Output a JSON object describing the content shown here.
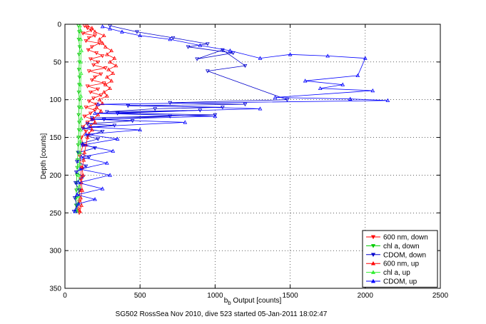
{
  "caption": "SG502 RossSea Nov 2010, dive 523 started 05-Jan-2011 18:02:47",
  "chart_data": {
    "type": "line",
    "xlabel": "b",
    "xlabel_sub": "b",
    "xlabel_rest": " Output [counts]",
    "ylabel": "Depth [counts]",
    "xlim": [
      0,
      2500
    ],
    "ylim": [
      0,
      350
    ],
    "y_reversed": true,
    "grid": true,
    "xticks": [
      0,
      500,
      1000,
      1500,
      2000,
      2500
    ],
    "yticks": [
      0,
      50,
      100,
      150,
      200,
      250,
      300,
      350
    ],
    "legend_position": "bottom-right",
    "series": [
      {
        "name": "600 nm, down",
        "color": "#ff0000",
        "marker": "triangle-down",
        "points": [
          [
            130,
            2
          ],
          [
            150,
            5
          ],
          [
            175,
            8
          ],
          [
            120,
            12
          ],
          [
            200,
            15
          ],
          [
            160,
            18
          ],
          [
            140,
            22
          ],
          [
            230,
            25
          ],
          [
            180,
            30
          ],
          [
            155,
            34
          ],
          [
            210,
            38
          ],
          [
            250,
            42
          ],
          [
            170,
            46
          ],
          [
            220,
            50
          ],
          [
            190,
            54
          ],
          [
            270,
            58
          ],
          [
            160,
            62
          ],
          [
            240,
            66
          ],
          [
            200,
            70
          ],
          [
            180,
            74
          ],
          [
            260,
            78
          ],
          [
            150,
            82
          ],
          [
            220,
            86
          ],
          [
            170,
            90
          ],
          [
            240,
            94
          ],
          [
            190,
            98
          ],
          [
            160,
            102
          ],
          [
            210,
            106
          ],
          [
            140,
            110
          ],
          [
            200,
            114
          ],
          [
            170,
            118
          ],
          [
            130,
            122
          ],
          [
            180,
            126
          ],
          [
            150,
            130
          ],
          [
            120,
            136
          ],
          [
            140,
            142
          ],
          [
            110,
            150
          ],
          [
            120,
            160
          ],
          [
            100,
            175
          ],
          [
            110,
            190
          ],
          [
            105,
            205
          ],
          [
            100,
            220
          ],
          [
            95,
            235
          ],
          [
            90,
            245
          ],
          [
            95,
            250
          ]
        ]
      },
      {
        "name": "chl a, down",
        "color": "#00cc00",
        "marker": "triangle-down",
        "points": [
          [
            90,
            2
          ],
          [
            95,
            10
          ],
          [
            92,
            20
          ],
          [
            98,
            30
          ],
          [
            94,
            40
          ],
          [
            96,
            50
          ],
          [
            93,
            60
          ],
          [
            97,
            70
          ],
          [
            95,
            80
          ],
          [
            92,
            90
          ],
          [
            96,
            100
          ],
          [
            94,
            110
          ],
          [
            91,
            120
          ],
          [
            95,
            130
          ],
          [
            93,
            140
          ],
          [
            90,
            150
          ],
          [
            88,
            160
          ],
          [
            86,
            170
          ],
          [
            84,
            180
          ],
          [
            82,
            190
          ],
          [
            80,
            200
          ],
          [
            78,
            210
          ],
          [
            76,
            220
          ],
          [
            75,
            230
          ],
          [
            74,
            240
          ],
          [
            75,
            248
          ]
        ]
      },
      {
        "name": "CDOM, down",
        "color": "#0000cc",
        "marker": "triangle-down",
        "points": [
          [
            300,
            2
          ],
          [
            480,
            10
          ],
          [
            720,
            18
          ],
          [
            950,
            26
          ],
          [
            820,
            30
          ],
          [
            1120,
            38
          ],
          [
            880,
            46
          ],
          [
            1050,
            34
          ],
          [
            1200,
            55
          ],
          [
            950,
            62
          ],
          [
            1480,
            100
          ],
          [
            700,
            104
          ],
          [
            1200,
            106
          ],
          [
            420,
            108
          ],
          [
            1050,
            110
          ],
          [
            600,
            112
          ],
          [
            280,
            116
          ],
          [
            900,
            114
          ],
          [
            350,
            118
          ],
          [
            1000,
            120
          ],
          [
            180,
            124
          ],
          [
            700,
            122
          ],
          [
            260,
            126
          ],
          [
            450,
            128
          ],
          [
            150,
            132
          ],
          [
            330,
            134
          ],
          [
            120,
            138
          ],
          [
            250,
            142
          ],
          [
            150,
            148
          ],
          [
            220,
            152
          ],
          [
            110,
            158
          ],
          [
            200,
            164
          ],
          [
            90,
            170
          ],
          [
            160,
            176
          ],
          [
            80,
            182
          ],
          [
            140,
            188
          ],
          [
            75,
            196
          ],
          [
            120,
            202
          ],
          [
            70,
            210
          ],
          [
            95,
            220
          ],
          [
            65,
            230
          ],
          [
            80,
            240
          ],
          [
            60,
            248
          ]
        ]
      },
      {
        "name": "600 nm, up",
        "color": "#ff0000",
        "marker": "triangle-up",
        "points": [
          [
            100,
            248
          ],
          [
            110,
            240
          ],
          [
            105,
            230
          ],
          [
            115,
            220
          ],
          [
            110,
            210
          ],
          [
            120,
            200
          ],
          [
            115,
            190
          ],
          [
            125,
            180
          ],
          [
            130,
            170
          ],
          [
            140,
            160
          ],
          [
            150,
            150
          ],
          [
            160,
            145
          ],
          [
            180,
            140
          ],
          [
            170,
            135
          ],
          [
            200,
            130
          ],
          [
            190,
            125
          ],
          [
            220,
            120
          ],
          [
            240,
            115
          ],
          [
            210,
            110
          ],
          [
            250,
            105
          ],
          [
            230,
            100
          ],
          [
            280,
            95
          ],
          [
            260,
            90
          ],
          [
            300,
            85
          ],
          [
            270,
            80
          ],
          [
            310,
            75
          ],
          [
            280,
            70
          ],
          [
            320,
            65
          ],
          [
            290,
            60
          ],
          [
            340,
            55
          ],
          [
            300,
            50
          ],
          [
            330,
            45
          ],
          [
            280,
            40
          ],
          [
            310,
            35
          ],
          [
            270,
            30
          ],
          [
            250,
            25
          ],
          [
            230,
            20
          ],
          [
            260,
            15
          ],
          [
            200,
            10
          ],
          [
            180,
            5
          ],
          [
            150,
            2
          ]
        ]
      },
      {
        "name": "chl a, up",
        "color": "#33ee33",
        "marker": "triangle-up",
        "points": [
          [
            80,
            248
          ],
          [
            85,
            238
          ],
          [
            90,
            228
          ],
          [
            95,
            215
          ],
          [
            92,
            200
          ],
          [
            98,
            185
          ],
          [
            100,
            170
          ],
          [
            102,
            155
          ],
          [
            105,
            140
          ],
          [
            108,
            125
          ],
          [
            110,
            110
          ],
          [
            106,
            95
          ],
          [
            104,
            80
          ],
          [
            108,
            65
          ],
          [
            105,
            50
          ],
          [
            110,
            35
          ],
          [
            106,
            20
          ],
          [
            104,
            8
          ],
          [
            100,
            2
          ]
        ]
      },
      {
        "name": "CDOM, up",
        "color": "#0000ff",
        "marker": "triangle-up",
        "points": [
          [
            70,
            248
          ],
          [
            90,
            238
          ],
          [
            200,
            232
          ],
          [
            80,
            226
          ],
          [
            250,
            218
          ],
          [
            90,
            210
          ],
          [
            300,
            200
          ],
          [
            100,
            192
          ],
          [
            280,
            184
          ],
          [
            110,
            176
          ],
          [
            320,
            168
          ],
          [
            120,
            160
          ],
          [
            350,
            152
          ],
          [
            140,
            146
          ],
          [
            500,
            140
          ],
          [
            160,
            136
          ],
          [
            800,
            130
          ],
          [
            180,
            126
          ],
          [
            1000,
            122
          ],
          [
            200,
            118
          ],
          [
            1300,
            112
          ],
          [
            220,
            106
          ],
          [
            2150,
            101
          ],
          [
            1900,
            99
          ],
          [
            1400,
            97
          ],
          [
            2050,
            88
          ],
          [
            1700,
            85
          ],
          [
            1850,
            80
          ],
          [
            1600,
            75
          ],
          [
            1950,
            68
          ],
          [
            2000,
            45
          ],
          [
            1750,
            42
          ],
          [
            1500,
            40
          ],
          [
            1300,
            45
          ],
          [
            1100,
            35
          ],
          [
            900,
            28
          ],
          [
            700,
            20
          ],
          [
            500,
            15
          ],
          [
            380,
            10
          ],
          [
            300,
            6
          ],
          [
            250,
            3
          ]
        ]
      }
    ]
  }
}
